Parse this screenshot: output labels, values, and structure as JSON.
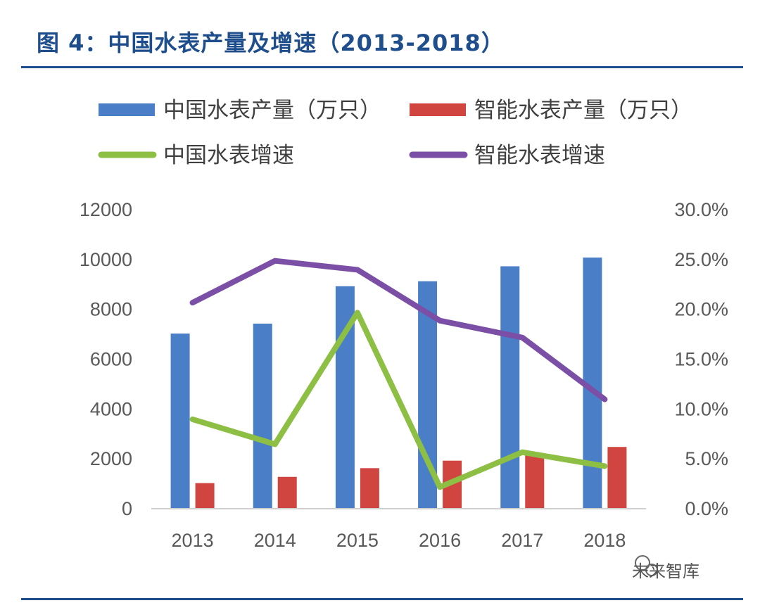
{
  "title": "图 4：中国水表产量及增速（2013-2018）",
  "watermark": "未来智库",
  "colors": {
    "title": "#1f4e8c",
    "blue": "#4a7fc8",
    "red": "#d0453f",
    "green": "#8dbf45",
    "purple": "#7b4fa6"
  },
  "chart_data": {
    "type": "bar+line",
    "categories": [
      "2013",
      "2014",
      "2015",
      "2016",
      "2017",
      "2018"
    ],
    "series": [
      {
        "name": "中国水表产量（万只）",
        "type": "bar",
        "axis": "left",
        "color": "#4a7fc8",
        "values": [
          7000,
          7400,
          8900,
          9100,
          9700,
          10050
        ]
      },
      {
        "name": "智能水表产量（万只）",
        "type": "bar",
        "axis": "left",
        "color": "#d0453f",
        "values": [
          1000,
          1250,
          1600,
          1900,
          2200,
          2450
        ]
      },
      {
        "name": "中国水表增速",
        "type": "line",
        "axis": "right",
        "color": "#8dbf45",
        "values": [
          8.9,
          6.4,
          19.6,
          2.1,
          5.6,
          4.2
        ]
      },
      {
        "name": "智能水表增速",
        "type": "line",
        "axis": "right",
        "color": "#7b4fa6",
        "values": [
          20.6,
          24.8,
          23.9,
          18.8,
          17.1,
          10.9
        ]
      }
    ],
    "y_left": {
      "range": [
        0,
        12000
      ],
      "ticks": [
        "0",
        "2000",
        "4000",
        "6000",
        "8000",
        "10000",
        "12000"
      ]
    },
    "y_right": {
      "range": [
        0,
        30
      ],
      "unit": "%",
      "ticks": [
        "0.0%",
        "5.0%",
        "10.0%",
        "15.0%",
        "20.0%",
        "25.0%",
        "30.0%"
      ]
    },
    "grid": false,
    "legend": "top"
  }
}
